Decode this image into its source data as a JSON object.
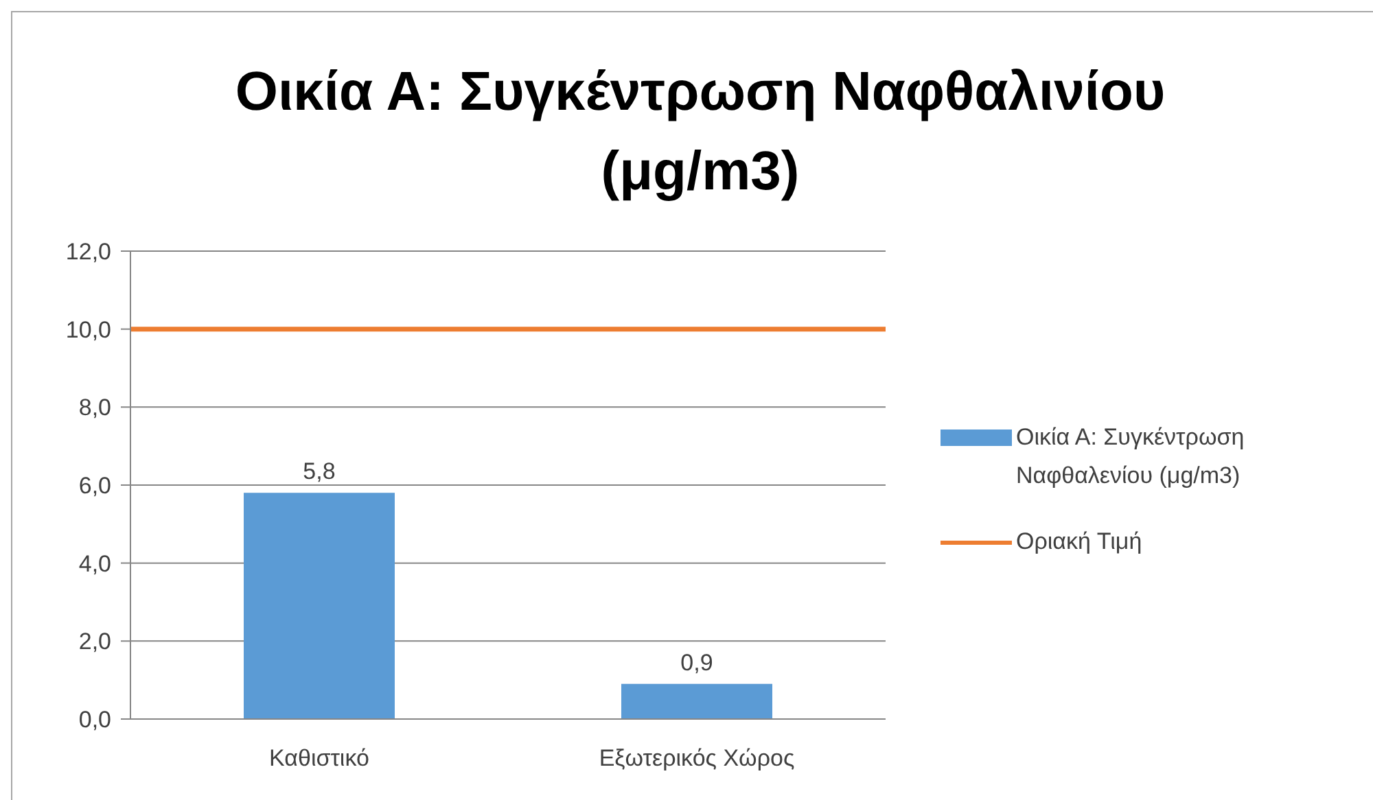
{
  "chart_data": {
    "type": "bar",
    "title": "Οικία Α: Συγκέντρωση Ναφθαλινίου (μg/m3)",
    "categories": [
      "Καθιστικό",
      "Εξωτερικός Χώρος"
    ],
    "series": [
      {
        "name": "Οικία Α: Συγκέντρωση Ναφθαλενίου (μg/m3)",
        "color": "#5b9bd5",
        "values": [
          5.8,
          0.9
        ],
        "value_labels": [
          "5,8",
          "0,9"
        ]
      }
    ],
    "ref_lines": [
      {
        "axis": "y",
        "value": 10,
        "label": "Οριακή Τιμή",
        "color": "#ed7d31"
      }
    ],
    "ylim": [
      0,
      12
    ],
    "yticks": [
      {
        "value": 0,
        "label": "0,0"
      },
      {
        "value": 2,
        "label": "2,0"
      },
      {
        "value": 4,
        "label": "4,0"
      },
      {
        "value": 6,
        "label": "6,0"
      },
      {
        "value": 8,
        "label": "8,0"
      },
      {
        "value": 10,
        "label": "10,0"
      },
      {
        "value": 12,
        "label": "12,0"
      }
    ],
    "grid": "y",
    "legend": "right"
  }
}
